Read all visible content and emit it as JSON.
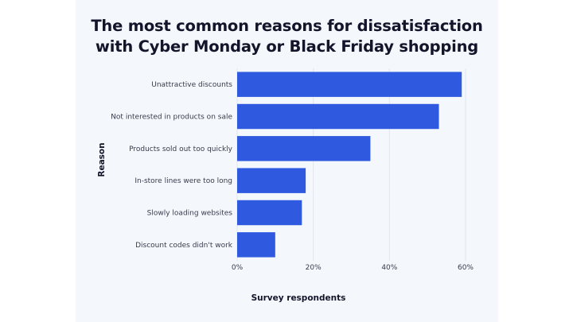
{
  "chart_data": {
    "type": "bar",
    "orientation": "horizontal",
    "title": [
      "The most common reasons for dissatisfaction",
      "with Cyber Monday or Black Friday shopping"
    ],
    "xlabel": "Survey respondents",
    "ylabel": "Reason",
    "categories": [
      "Unattractive discounts",
      "Not interested in products on sale",
      "Products sold out too quickly",
      "In-store lines were too long",
      "Slowly loading websites",
      "Discount codes didn't work"
    ],
    "values": [
      59,
      53,
      35,
      18,
      17,
      10
    ],
    "xlim": [
      0,
      60
    ],
    "xticks": [
      "0%",
      "20%",
      "40%",
      "60%"
    ],
    "grid": true,
    "bar_color": "#2f5ae0"
  }
}
